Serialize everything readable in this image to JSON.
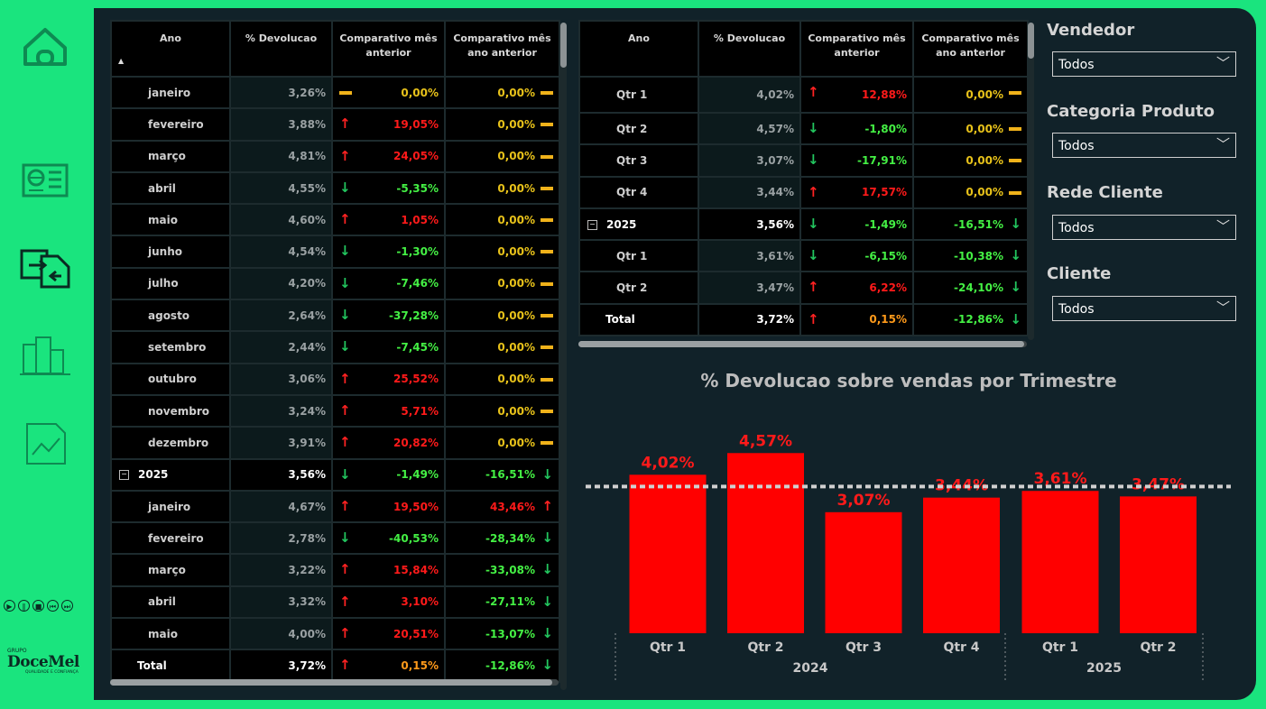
{
  "nav": {
    "items": [
      "home",
      "report",
      "transfer",
      "podium",
      "trend"
    ]
  },
  "logo": {
    "top": "GRUPO",
    "brand": "DoceMel",
    "tagline": "QUALIDADE E CONFIANÇA"
  },
  "colors": {
    "bg": "#1ae47e",
    "panel": "#112229",
    "bar": "#ff0000",
    "up": "#ff2222",
    "down": "#22c55e"
  },
  "monthly_table": {
    "headers": [
      "Ano",
      "% Devolucao",
      "Comparativo mês anterior",
      "Comparativo mês ano anterior"
    ],
    "rows": [
      {
        "label": "janeiro",
        "pct": "3,26%",
        "mom": "0,00%",
        "mom_dir": "flat",
        "mom_color": "yel",
        "yoy": "0,00%",
        "yoy_dir": "flat",
        "yoy_color": "yel",
        "type": "child"
      },
      {
        "label": "fevereiro",
        "pct": "3,88%",
        "mom": "19,05%",
        "mom_dir": "up",
        "mom_color": "red",
        "yoy": "0,00%",
        "yoy_dir": "flat",
        "yoy_color": "yel",
        "type": "child"
      },
      {
        "label": "março",
        "pct": "4,81%",
        "mom": "24,05%",
        "mom_dir": "up",
        "mom_color": "red",
        "yoy": "0,00%",
        "yoy_dir": "flat",
        "yoy_color": "yel",
        "type": "child"
      },
      {
        "label": "abril",
        "pct": "4,55%",
        "mom": "-5,35%",
        "mom_dir": "down",
        "mom_color": "green",
        "yoy": "0,00%",
        "yoy_dir": "flat",
        "yoy_color": "yel",
        "type": "child"
      },
      {
        "label": "maio",
        "pct": "4,60%",
        "mom": "1,05%",
        "mom_dir": "up",
        "mom_color": "red",
        "yoy": "0,00%",
        "yoy_dir": "flat",
        "yoy_color": "yel",
        "type": "child"
      },
      {
        "label": "junho",
        "pct": "4,54%",
        "mom": "-1,30%",
        "mom_dir": "down",
        "mom_color": "green",
        "yoy": "0,00%",
        "yoy_dir": "flat",
        "yoy_color": "yel",
        "type": "child"
      },
      {
        "label": "julho",
        "pct": "4,20%",
        "mom": "-7,46%",
        "mom_dir": "down",
        "mom_color": "green",
        "yoy": "0,00%",
        "yoy_dir": "flat",
        "yoy_color": "yel",
        "type": "child"
      },
      {
        "label": "agosto",
        "pct": "2,64%",
        "mom": "-37,28%",
        "mom_dir": "down",
        "mom_color": "green",
        "yoy": "0,00%",
        "yoy_dir": "flat",
        "yoy_color": "yel",
        "type": "child"
      },
      {
        "label": "setembro",
        "pct": "2,44%",
        "mom": "-7,45%",
        "mom_dir": "down",
        "mom_color": "green",
        "yoy": "0,00%",
        "yoy_dir": "flat",
        "yoy_color": "yel",
        "type": "child"
      },
      {
        "label": "outubro",
        "pct": "3,06%",
        "mom": "25,52%",
        "mom_dir": "up",
        "mom_color": "red",
        "yoy": "0,00%",
        "yoy_dir": "flat",
        "yoy_color": "yel",
        "type": "child"
      },
      {
        "label": "novembro",
        "pct": "3,24%",
        "mom": "5,71%",
        "mom_dir": "up",
        "mom_color": "red",
        "yoy": "0,00%",
        "yoy_dir": "flat",
        "yoy_color": "yel",
        "type": "child"
      },
      {
        "label": "dezembro",
        "pct": "3,91%",
        "mom": "20,82%",
        "mom_dir": "up",
        "mom_color": "red",
        "yoy": "0,00%",
        "yoy_dir": "flat",
        "yoy_color": "yel",
        "type": "child"
      },
      {
        "label": "2025",
        "pct": "3,56%",
        "mom": "-1,49%",
        "mom_dir": "down",
        "mom_color": "green",
        "yoy": "-16,51%",
        "yoy_dir": "down",
        "yoy_color": "green",
        "type": "year"
      },
      {
        "label": "janeiro",
        "pct": "4,67%",
        "mom": "19,50%",
        "mom_dir": "up",
        "mom_color": "red",
        "yoy": "43,46%",
        "yoy_dir": "up",
        "yoy_color": "red",
        "type": "child"
      },
      {
        "label": "fevereiro",
        "pct": "2,78%",
        "mom": "-40,53%",
        "mom_dir": "down",
        "mom_color": "green",
        "yoy": "-28,34%",
        "yoy_dir": "down",
        "yoy_color": "green",
        "type": "child"
      },
      {
        "label": "março",
        "pct": "3,22%",
        "mom": "15,84%",
        "mom_dir": "up",
        "mom_color": "red",
        "yoy": "-33,08%",
        "yoy_dir": "down",
        "yoy_color": "green",
        "type": "child"
      },
      {
        "label": "abril",
        "pct": "3,32%",
        "mom": "3,10%",
        "mom_dir": "up",
        "mom_color": "red",
        "yoy": "-27,11%",
        "yoy_dir": "down",
        "yoy_color": "green",
        "type": "child"
      },
      {
        "label": "maio",
        "pct": "4,00%",
        "mom": "20,51%",
        "mom_dir": "up",
        "mom_color": "red",
        "yoy": "-13,07%",
        "yoy_dir": "down",
        "yoy_color": "green",
        "type": "child"
      },
      {
        "label": "Total",
        "pct": "3,72%",
        "mom": "0,15%",
        "mom_dir": "up",
        "mom_color": "org",
        "yoy": "-12,86%",
        "yoy_dir": "down",
        "yoy_color": "green",
        "type": "total"
      }
    ]
  },
  "quarterly_table": {
    "headers": [
      "Ano",
      "% Devolucao",
      "Comparativo mês anterior",
      "Comparativo mês ano anterior"
    ],
    "rows": [
      {
        "label": "Qtr 1",
        "pct": "4,02%",
        "mom": "12,88%",
        "mom_dir": "up",
        "mom_color": "red",
        "yoy": "0,00%",
        "yoy_dir": "flat",
        "yoy_color": "yel",
        "type": "child"
      },
      {
        "label": "Qtr 2",
        "pct": "4,57%",
        "mom": "-1,80%",
        "mom_dir": "down",
        "mom_color": "green",
        "yoy": "0,00%",
        "yoy_dir": "flat",
        "yoy_color": "yel",
        "type": "child"
      },
      {
        "label": "Qtr 3",
        "pct": "3,07%",
        "mom": "-17,91%",
        "mom_dir": "down",
        "mom_color": "green",
        "yoy": "0,00%",
        "yoy_dir": "flat",
        "yoy_color": "yel",
        "type": "child"
      },
      {
        "label": "Qtr 4",
        "pct": "3,44%",
        "mom": "17,57%",
        "mom_dir": "up",
        "mom_color": "red",
        "yoy": "0,00%",
        "yoy_dir": "flat",
        "yoy_color": "yel",
        "type": "child"
      },
      {
        "label": "2025",
        "pct": "3,56%",
        "mom": "-1,49%",
        "mom_dir": "down",
        "mom_color": "green",
        "yoy": "-16,51%",
        "yoy_dir": "down",
        "yoy_color": "green",
        "type": "year"
      },
      {
        "label": "Qtr 1",
        "pct": "3,61%",
        "mom": "-6,15%",
        "mom_dir": "down",
        "mom_color": "green",
        "yoy": "-10,38%",
        "yoy_dir": "down",
        "yoy_color": "green",
        "type": "child"
      },
      {
        "label": "Qtr 2",
        "pct": "3,47%",
        "mom": "6,22%",
        "mom_dir": "up",
        "mom_color": "red",
        "yoy": "-24,10%",
        "yoy_dir": "down",
        "yoy_color": "green",
        "type": "child"
      },
      {
        "label": "Total",
        "pct": "3,72%",
        "mom": "0,15%",
        "mom_dir": "up",
        "mom_color": "org",
        "yoy": "-12,86%",
        "yoy_dir": "down",
        "yoy_color": "green",
        "type": "total"
      }
    ]
  },
  "slicers": [
    {
      "title": "Vendedor",
      "value": "Todos"
    },
    {
      "title": "Categoria Produto",
      "value": "Todos"
    },
    {
      "title": "Rede Cliente",
      "value": "Todos"
    },
    {
      "title": "Cliente",
      "value": "Todos"
    }
  ],
  "chart_data": {
    "type": "bar",
    "title": "% Devolucao sobre vendas por Trimestre",
    "categories": [
      "Qtr 1",
      "Qtr 2",
      "Qtr 3",
      "Qtr 4",
      "Qtr 1",
      "Qtr 2"
    ],
    "groups": [
      {
        "label": "2024",
        "count": 4
      },
      {
        "label": "2025",
        "count": 2
      }
    ],
    "values": [
      4.02,
      4.57,
      3.07,
      3.44,
      3.61,
      3.47
    ],
    "data_labels": [
      "4,02%",
      "4,57%",
      "3,07%",
      "3,44%",
      "3,61%",
      "3,47%"
    ],
    "reference_line": 3.72,
    "ylim": [
      0,
      5.4
    ],
    "grid": false,
    "bar_color": "#ff0000"
  }
}
